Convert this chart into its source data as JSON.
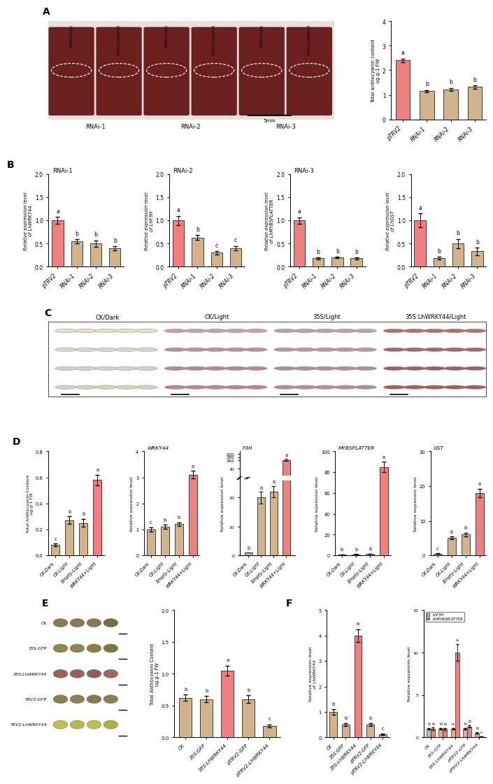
{
  "panel_A_bar": {
    "categories": [
      "pTRV2",
      "RNAi-1",
      "RNAi-2",
      "RNAi-3"
    ],
    "values": [
      2.4,
      1.15,
      1.22,
      1.32
    ],
    "errors": [
      0.08,
      0.05,
      0.06,
      0.07
    ],
    "colors": [
      "#F08080",
      "#D2B48C",
      "#D2B48C",
      "#D2B48C"
    ],
    "letters": [
      "a",
      "b",
      "b",
      "b"
    ],
    "ylabel": "Total anthocyanin content\nug.g-1 FW",
    "ylim": [
      0,
      4
    ]
  },
  "panel_B_WRKY44": {
    "title": "RNAi-1",
    "categories": [
      "pTRV2",
      "RNAi-1",
      "RNAi-2",
      "RNAi-3"
    ],
    "values": [
      1.0,
      0.55,
      0.5,
      0.4
    ],
    "errors": [
      0.08,
      0.04,
      0.07,
      0.04
    ],
    "colors": [
      "#F08080",
      "#D2B48C",
      "#D2B48C",
      "#D2B48C"
    ],
    "letters": [
      "a",
      "b",
      "b",
      "b"
    ],
    "ylabel": "Relative expression level\nof LhWRKY44",
    "ylim": [
      0,
      2.0
    ]
  },
  "panel_B_F3H": {
    "title": "RNAi-2",
    "categories": [
      "pTRV2",
      "RNAi-1",
      "RNAi-2",
      "RNAi-3"
    ],
    "values": [
      1.0,
      0.63,
      0.3,
      0.4
    ],
    "errors": [
      0.1,
      0.05,
      0.04,
      0.05
    ],
    "colors": [
      "#F08080",
      "#D2B48C",
      "#D2B48C",
      "#D2B48C"
    ],
    "letters": [
      "a",
      "b",
      "c",
      "c"
    ],
    "ylabel": "Relative expression level\nof LhF3H",
    "ylim": [
      0,
      2.0
    ]
  },
  "panel_B_MYBSPLATTER": {
    "title": "RNAi-3",
    "categories": [
      "pTRV2",
      "RNAi-1",
      "RNAi-2",
      "RNAi-3"
    ],
    "values": [
      1.0,
      0.18,
      0.2,
      0.18
    ],
    "errors": [
      0.07,
      0.02,
      0.02,
      0.02
    ],
    "colors": [
      "#F08080",
      "#D2B48C",
      "#D2B48C",
      "#D2B48C"
    ],
    "letters": [
      "a",
      "b",
      "b",
      "b"
    ],
    "ylabel": "Relative expression level\nof LhMYBSPLATTER",
    "ylim": [
      0,
      2.0
    ]
  },
  "panel_B_GST": {
    "categories": [
      "pTRV2",
      "RNAi-1",
      "RNAi-2",
      "RNAi-3"
    ],
    "values": [
      1.0,
      0.18,
      0.5,
      0.33
    ],
    "errors": [
      0.15,
      0.03,
      0.1,
      0.08
    ],
    "colors": [
      "#F08080",
      "#D2B48C",
      "#D2B48C",
      "#D2B48C"
    ],
    "letters": [
      "a",
      "b",
      "b",
      "b"
    ],
    "ylabel": "Relative expression level\nof LhGST",
    "ylim": [
      0,
      2.0
    ]
  },
  "panel_D_antho": {
    "categories": [
      "CK-Dark",
      "CK-Light",
      "Empty-Light",
      "WRKY44+Light"
    ],
    "values": [
      0.08,
      0.27,
      0.25,
      0.58
    ],
    "errors": [
      0.01,
      0.03,
      0.03,
      0.04
    ],
    "colors": [
      "#D2B48C",
      "#D2B48C",
      "#D2B48C",
      "#F08080"
    ],
    "letters": [
      "c",
      "b",
      "b",
      "a"
    ],
    "ylabel": "Total Anthocyanin Content\nug.g-1 FW",
    "ylim": [
      0,
      0.8
    ]
  },
  "panel_D_WRKY44": {
    "title": "WRKY44",
    "categories": [
      "CK-Dark",
      "CK-Light",
      "Empty-Light",
      "WRKY44+Light"
    ],
    "values": [
      1.0,
      1.1,
      1.2,
      3.1
    ],
    "errors": [
      0.08,
      0.08,
      0.08,
      0.15
    ],
    "colors": [
      "#D2B48C",
      "#D2B48C",
      "#D2B48C",
      "#F08080"
    ],
    "letters": [
      "c",
      "b",
      "b",
      "a"
    ],
    "ylabel": "Relative expression level",
    "ylim": [
      0,
      4
    ]
  },
  "panel_D_F3H": {
    "title": "F3H",
    "categories": [
      "CK-Dark",
      "CK-Light",
      "Empty-Light",
      "WRKY44+Light"
    ],
    "values": [
      1.0,
      20.0,
      22.0,
      160.0
    ],
    "errors": [
      0.1,
      2.0,
      2.0,
      8.0
    ],
    "colors": [
      "#D2B48C",
      "#D2B48C",
      "#D2B48C",
      "#F08080"
    ],
    "letters": [
      "b",
      "b",
      "b",
      "a"
    ],
    "ylabel": "Relative expression level"
  },
  "panel_D_MYBSPLATTER": {
    "title": "MYBSPLATTER",
    "categories": [
      "CK-Dark",
      "CK-Light",
      "Empty-Light",
      "WRKY44+Light"
    ],
    "values": [
      1.0,
      1.1,
      1.3,
      85.0
    ],
    "errors": [
      0.1,
      0.1,
      0.1,
      5.0
    ],
    "colors": [
      "#D2B48C",
      "#D2B48C",
      "#D2B48C",
      "#F08080"
    ],
    "letters": [
      "b",
      "b",
      "b",
      "a"
    ],
    "ylabel": "Relative expression level",
    "ylim": [
      0,
      100
    ]
  },
  "panel_D_GST": {
    "title": "GST",
    "categories": [
      "CK-Dark",
      "CK-Light",
      "Empty-Light",
      "WRKY44+Light"
    ],
    "values": [
      0.5,
      5.0,
      6.0,
      18.0
    ],
    "errors": [
      0.05,
      0.4,
      0.5,
      1.2
    ],
    "colors": [
      "#D2B48C",
      "#D2B48C",
      "#D2B48C",
      "#F08080"
    ],
    "letters": [
      "c",
      "b",
      "b",
      "a"
    ],
    "ylabel": "Relative expression level",
    "ylim": [
      0,
      30
    ]
  },
  "panel_E_antho": {
    "categories": [
      "CK",
      "35S:GFP",
      "35S:LhWRKY44",
      "pTRV2-GFP",
      "pTRV2-LhWRKY44"
    ],
    "values": [
      0.62,
      0.6,
      1.05,
      0.6,
      0.18
    ],
    "errors": [
      0.05,
      0.05,
      0.08,
      0.06,
      0.02
    ],
    "colors": [
      "#D2B48C",
      "#D2B48C",
      "#F08080",
      "#D2B48C",
      "#D2B48C"
    ],
    "letters": [
      "b",
      "b",
      "a",
      "b",
      "c"
    ],
    "ylabel": "Total Anthocyanin Content\nug.g-1 FW",
    "ylim": [
      0,
      2.0
    ]
  },
  "panel_F_WRKY44": {
    "categories": [
      "CK",
      "35S:GFP",
      "35S:LhWRKY44",
      "pTRV2-GFP",
      "pTRV2-LhWRKY44"
    ],
    "values": [
      1.0,
      0.5,
      4.0,
      0.5,
      0.12
    ],
    "errors": [
      0.1,
      0.05,
      0.25,
      0.05,
      0.02
    ],
    "colors": [
      "#D2B48C",
      "#D2B48C",
      "#F08080",
      "#D2B48C",
      "#D2B48C"
    ],
    "letters": [
      "b",
      "b",
      "a",
      "b",
      "c"
    ],
    "ylabel": "Relative expression level\nof LhWRKY44",
    "ylim": [
      0,
      5
    ]
  },
  "panel_F_grouped": {
    "categories": [
      "CK",
      "35S:GFP",
      "35S:LhWRKY44",
      "pTRV2-GFP",
      "pTRV2-LhWRKY44"
    ],
    "LhF3H_values": [
      1.0,
      1.0,
      1.0,
      1.0,
      0.5
    ],
    "LhMYBS_values": [
      1.0,
      1.0,
      10.0,
      1.3,
      0.1
    ],
    "LhF3H_errors": [
      0.1,
      0.1,
      0.1,
      0.1,
      0.08
    ],
    "LhMYBS_errors": [
      0.15,
      0.12,
      1.0,
      0.15,
      0.02
    ],
    "LhF3H_color": "#D2B48C",
    "LhMYBS_color": "#F08080",
    "letters_F3H": [
      "b",
      "b",
      "a",
      "b",
      "b"
    ],
    "letters_MYBS": [
      "b",
      "b",
      "a",
      "b",
      "c"
    ],
    "ylabel": "Relative expression level",
    "ylim": [
      0,
      15
    ],
    "legend": [
      "LhF3H",
      "LhMYBSPLATTER"
    ]
  }
}
